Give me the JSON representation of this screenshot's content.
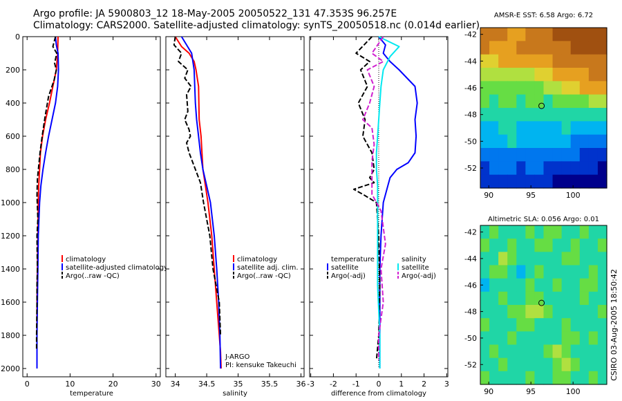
{
  "title": {
    "line1": "Argo profile: JA 5900803_12 18-May-2005 20050522_131 47.353S 96.257E",
    "line2": "Climatology: CARS2000. Satellite-adjusted climatology: synTS_20050518.nc (0.014d earlier)"
  },
  "credit": "CSIRO 03-Aug-2005 18:50:42",
  "colors": {
    "red": "#ff0000",
    "blue": "#0000ff",
    "black": "#000000",
    "cyan": "#00e8f0",
    "magenta": "#d020d0"
  },
  "chart_data": [
    {
      "type": "line",
      "id": "temperature",
      "xlabel": "temperature",
      "xlim": [
        -1,
        31
      ],
      "ylim": [
        0,
        2050
      ],
      "xticks": [
        0,
        10,
        20,
        30
      ],
      "yticks": [
        0,
        200,
        400,
        600,
        800,
        1000,
        1200,
        1400,
        1600,
        1800,
        2000
      ],
      "legend": [
        "climatology",
        "satellite-adjusted climatology",
        "Argo(..raw -QC)"
      ],
      "series": [
        {
          "name": "climatology",
          "color": "red",
          "dash": false,
          "x": [
            7.2,
            7.1,
            6.8,
            6.0,
            5.2,
            4.3,
            3.6,
            3.1,
            2.9,
            2.7,
            2.6,
            2.5,
            2.4,
            2.3,
            2.3,
            2.3
          ],
          "y": [
            0,
            100,
            200,
            300,
            400,
            500,
            600,
            700,
            800,
            900,
            1000,
            1200,
            1400,
            1600,
            1800,
            2000
          ]
        },
        {
          "name": "satellite-adjusted climatology",
          "color": "blue",
          "dash": false,
          "x": [
            6.6,
            6.8,
            7.2,
            7.3,
            7.1,
            6.6,
            5.8,
            5.0,
            4.3,
            3.7,
            3.2,
            2.9,
            2.6,
            2.5,
            2.4,
            2.3,
            2.3
          ],
          "y": [
            0,
            50,
            100,
            200,
            300,
            400,
            500,
            600,
            700,
            800,
            900,
            1000,
            1200,
            1400,
            1600,
            1800,
            2000
          ]
        },
        {
          "name": "Argo(..raw -QC)",
          "color": "black",
          "dash": true,
          "x": [
            6.6,
            6.0,
            6.9,
            6.4,
            6.8,
            6.3,
            5.0,
            4.2,
            3.5,
            3.0,
            2.4,
            2.3,
            2.5,
            2.3,
            2.4,
            2.3,
            2.3,
            2.2,
            2.2
          ],
          "y": [
            0,
            60,
            100,
            160,
            200,
            260,
            360,
            480,
            600,
            700,
            860,
            960,
            1100,
            1200,
            1400,
            1500,
            1600,
            1800,
            1880
          ]
        }
      ]
    },
    {
      "type": "line",
      "id": "salinity",
      "xlabel": "salinity",
      "xlim": [
        33.85,
        36.05
      ],
      "ylim": [
        0,
        2050
      ],
      "xticks": [
        34,
        34.5,
        35,
        35.5,
        36
      ],
      "yticks": [
        0,
        200,
        400,
        600,
        800,
        1000,
        1200,
        1400,
        1600,
        1800,
        2000
      ],
      "legend": [
        "climatology",
        "satellite adj. clim.",
        "Argo(..raw -QC)"
      ],
      "annotations": [
        "J-ARGO",
        "PI: kensuke Takeuchi"
      ],
      "series": [
        {
          "name": "climatology",
          "color": "red",
          "dash": false,
          "x": [
            34.0,
            34.1,
            34.22,
            34.3,
            34.33,
            34.37,
            34.38,
            34.41,
            34.44,
            34.48,
            34.52,
            34.58,
            34.62,
            34.66,
            34.7,
            34.72,
            34.73
          ],
          "y": [
            0,
            60,
            100,
            150,
            200,
            300,
            500,
            600,
            800,
            900,
            1000,
            1200,
            1400,
            1600,
            1800,
            1900,
            2000
          ]
        },
        {
          "name": "satellite adj. clim.",
          "color": "blue",
          "dash": false,
          "x": [
            34.1,
            34.18,
            34.26,
            34.28,
            34.3,
            34.31,
            34.32,
            34.34,
            34.37,
            34.4,
            34.44,
            34.5,
            34.56,
            34.62,
            34.66,
            34.69,
            34.71,
            34.72
          ],
          "y": [
            0,
            50,
            100,
            150,
            200,
            300,
            400,
            500,
            600,
            700,
            800,
            900,
            1000,
            1200,
            1400,
            1600,
            1800,
            2000
          ]
        },
        {
          "name": "Argo(..raw -QC)",
          "color": "black",
          "dash": true,
          "x": [
            34.0,
            33.98,
            34.1,
            34.05,
            34.2,
            34.15,
            34.25,
            34.18,
            34.2,
            34.15,
            34.22,
            34.24,
            34.18,
            34.22,
            34.3,
            34.4,
            34.45,
            34.55,
            34.6,
            34.7,
            34.72
          ],
          "y": [
            0,
            50,
            100,
            150,
            200,
            250,
            300,
            350,
            450,
            500,
            560,
            600,
            640,
            700,
            780,
            880,
            1000,
            1200,
            1400,
            1600,
            1800
          ]
        }
      ]
    },
    {
      "type": "line",
      "id": "difference",
      "xlabel": "difference from climatology",
      "xlim": [
        -3.05,
        3.05
      ],
      "ylim": [
        0,
        2050
      ],
      "xticks": [
        -3,
        -2,
        -1,
        0,
        1,
        2,
        3
      ],
      "yticks": [
        0,
        200,
        400,
        600,
        800,
        1000,
        1200,
        1400,
        1600,
        1800,
        2000
      ],
      "legend_temperature": [
        "temperature",
        "satellite",
        "Argo(-adj)"
      ],
      "legend_salinity": [
        "salinity",
        "satellite",
        "Argo(-adj)"
      ],
      "series": [
        {
          "name": "temperature satellite",
          "color": "blue",
          "dash": false,
          "x": [
            0.0,
            0.3,
            0.2,
            0.5,
            0.9,
            1.6,
            1.7,
            1.6,
            1.65,
            1.6,
            1.3,
            0.8,
            0.5,
            0.4,
            0.2,
            0.1,
            0.05,
            0.05,
            0.05
          ],
          "y": [
            0,
            50,
            100,
            150,
            200,
            300,
            400,
            500,
            600,
            700,
            760,
            800,
            850,
            900,
            1000,
            1200,
            1400,
            1800,
            2000
          ]
        },
        {
          "name": "temperature Argo(-adj)",
          "color": "black",
          "dash": true,
          "x": [
            -0.3,
            -1.0,
            -0.4,
            -0.8,
            -0.5,
            -0.9,
            -0.6,
            -0.7,
            -0.3,
            -0.2,
            -0.4,
            -0.2,
            -1.1,
            -0.7,
            -0.1,
            0.0,
            0.05,
            0.0,
            -0.1
          ],
          "y": [
            0,
            100,
            150,
            200,
            300,
            400,
            500,
            600,
            700,
            800,
            850,
            880,
            920,
            950,
            1000,
            1200,
            1500,
            1800,
            1950
          ]
        },
        {
          "name": "salinity satellite",
          "color": "cyan",
          "dash": false,
          "x": [
            0.0,
            0.9,
            0.5,
            0.2,
            0.1,
            0.05,
            0.0,
            -0.05,
            -0.1,
            -0.1,
            -0.05,
            -0.05,
            -0.05,
            -0.05,
            0.05,
            0.05
          ],
          "y": [
            0,
            60,
            120,
            200,
            300,
            400,
            500,
            600,
            700,
            800,
            900,
            1000,
            1200,
            1500,
            1800,
            2000
          ]
        },
        {
          "name": "salinity Argo(-adj)",
          "color": "magenta",
          "dash": true,
          "x": [
            0.2,
            -0.3,
            0.2,
            -0.5,
            -0.2,
            -0.4,
            -0.7,
            -0.3,
            -0.2,
            -0.3,
            -0.3,
            0.1,
            0.2,
            0.3,
            0.1,
            0.2,
            0.0,
            0.0
          ],
          "y": [
            0,
            100,
            150,
            200,
            300,
            400,
            500,
            550,
            650,
            750,
            950,
            1050,
            1150,
            1250,
            1400,
            1600,
            1800,
            1950
          ]
        }
      ]
    },
    {
      "type": "heatmap",
      "id": "sst_map",
      "title": "AMSR-E SST: 6.58 Argo: 6.72",
      "xlim": [
        89,
        104
      ],
      "ylim": [
        -53.5,
        -41.5
      ],
      "xticks": [
        90,
        95,
        100
      ],
      "yticks": [
        -42,
        -44,
        -46,
        -48,
        -50,
        -52
      ],
      "marker": {
        "lon": 96.26,
        "lat": -47.35
      },
      "grid": [
        [
          9,
          9,
          9,
          8,
          8,
          9,
          9,
          9,
          10,
          10,
          10,
          10,
          10,
          10
        ],
        [
          9,
          8,
          8,
          8,
          9,
          9,
          9,
          9,
          9,
          9,
          10,
          10,
          10,
          10
        ],
        [
          7,
          7,
          8,
          8,
          8,
          8,
          8,
          8,
          9,
          9,
          9,
          9,
          9,
          9
        ],
        [
          6,
          6,
          6,
          6,
          6,
          6,
          7,
          7,
          8,
          8,
          8,
          8,
          9,
          9
        ],
        [
          5,
          5,
          5,
          5,
          5,
          5,
          5,
          6,
          6,
          7,
          7,
          8,
          8,
          8
        ],
        [
          5,
          4,
          5,
          5,
          4,
          5,
          5,
          4,
          5,
          5,
          5,
          5,
          6,
          6
        ],
        [
          4,
          4,
          4,
          4,
          4,
          4,
          4,
          4,
          4,
          4,
          4,
          4,
          4,
          4
        ],
        [
          3,
          3,
          4,
          4,
          3,
          3,
          3,
          3,
          3,
          4,
          3,
          3,
          3,
          3
        ],
        [
          3,
          3,
          3,
          4,
          3,
          3,
          3,
          3,
          3,
          3,
          2,
          2,
          2,
          2
        ],
        [
          2,
          2,
          2,
          2,
          2,
          2,
          2,
          2,
          2,
          2,
          2,
          1,
          1,
          1
        ],
        [
          1,
          2,
          2,
          2,
          1,
          2,
          2,
          1,
          1,
          1,
          1,
          1,
          1,
          0
        ],
        [
          1,
          1,
          1,
          1,
          1,
          1,
          1,
          1,
          0,
          0,
          0,
          0,
          0,
          0
        ]
      ]
    },
    {
      "type": "heatmap",
      "id": "sla_map",
      "title": "Altimetric SLA: 0.056 Argo: 0.01",
      "xlim": [
        89,
        104
      ],
      "ylim": [
        -53.5,
        -41.5
      ],
      "xticks": [
        90,
        95,
        100
      ],
      "yticks": [
        -42,
        -44,
        -46,
        -48,
        -50,
        -52
      ],
      "marker": {
        "lon": 96.26,
        "lat": -47.35
      },
      "grid": [
        [
          4,
          5,
          4,
          4,
          4,
          5,
          4,
          5,
          5,
          4,
          4,
          5,
          4,
          4
        ],
        [
          5,
          4,
          4,
          5,
          4,
          4,
          5,
          5,
          4,
          4,
          5,
          4,
          4,
          5
        ],
        [
          4,
          4,
          6,
          5,
          4,
          4,
          4,
          4,
          4,
          5,
          5,
          4,
          4,
          4
        ],
        [
          4,
          5,
          5,
          4,
          3,
          4,
          5,
          4,
          4,
          4,
          4,
          4,
          5,
          4
        ],
        [
          3,
          4,
          4,
          4,
          4,
          5,
          4,
          4,
          5,
          4,
          4,
          5,
          5,
          4
        ],
        [
          4,
          4,
          5,
          4,
          4,
          5,
          5,
          4,
          4,
          4,
          4,
          5,
          4,
          4
        ],
        [
          4,
          4,
          4,
          5,
          5,
          6,
          6,
          5,
          4,
          4,
          4,
          4,
          4,
          5
        ],
        [
          5,
          4,
          4,
          4,
          5,
          5,
          4,
          4,
          4,
          5,
          4,
          4,
          4,
          4
        ],
        [
          4,
          4,
          4,
          5,
          4,
          4,
          4,
          4,
          4,
          5,
          5,
          4,
          5,
          4
        ],
        [
          4,
          5,
          4,
          4,
          4,
          4,
          4,
          5,
          6,
          5,
          4,
          4,
          4,
          4
        ],
        [
          4,
          4,
          5,
          4,
          4,
          4,
          4,
          4,
          5,
          6,
          5,
          4,
          4,
          4
        ],
        [
          5,
          4,
          4,
          4,
          4,
          5,
          4,
          4,
          5,
          5,
          4,
          4,
          5,
          4
        ]
      ]
    }
  ]
}
